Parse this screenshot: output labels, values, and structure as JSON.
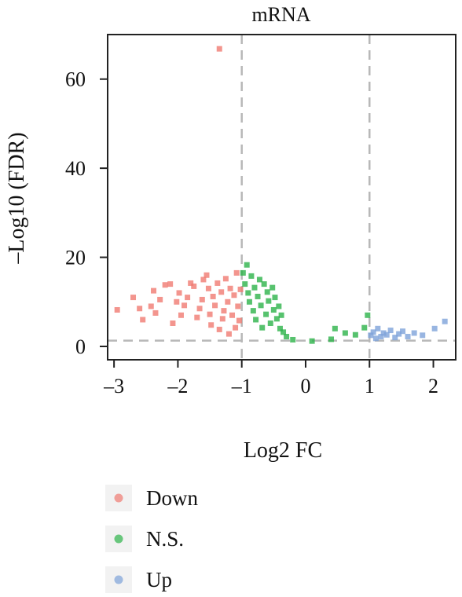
{
  "chart_data": {
    "type": "scatter",
    "title": "mRNA",
    "xlabel": "Log2 FC",
    "ylabel": "–Log10 (FDR)",
    "xlim": [
      -3.1,
      2.35
    ],
    "ylim": [
      -3,
      70
    ],
    "x_ticks": [
      -3,
      -2,
      -1,
      0,
      1,
      2
    ],
    "x_tick_labels": [
      "–3",
      "–2",
      "–1",
      "0",
      "1",
      "2"
    ],
    "y_ticks": [
      0,
      20,
      40,
      60
    ],
    "y_tick_labels": [
      "0",
      "20",
      "40",
      "60"
    ],
    "grid": false,
    "legend": "bottom-left",
    "thresholds": {
      "x": [
        -1,
        1
      ],
      "y": [
        1.3
      ]
    },
    "series": [
      {
        "name": "Down",
        "color": "#f07b72",
        "points": [
          [
            -1.35,
            66.8
          ],
          [
            -2.95,
            8.2
          ],
          [
            -2.7,
            11.0
          ],
          [
            -2.6,
            8.5
          ],
          [
            -2.55,
            6.0
          ],
          [
            -2.42,
            9.0
          ],
          [
            -2.38,
            12.5
          ],
          [
            -2.35,
            7.5
          ],
          [
            -2.28,
            10.5
          ],
          [
            -2.2,
            13.8
          ],
          [
            -2.12,
            14.0
          ],
          [
            -2.08,
            5.2
          ],
          [
            -2.02,
            10.0
          ],
          [
            -1.98,
            12.0
          ],
          [
            -1.95,
            7.0
          ],
          [
            -1.9,
            9.2
          ],
          [
            -1.85,
            11.0
          ],
          [
            -1.8,
            14.2
          ],
          [
            -1.75,
            13.5
          ],
          [
            -1.7,
            6.5
          ],
          [
            -1.66,
            8.5
          ],
          [
            -1.62,
            10.5
          ],
          [
            -1.6,
            15.0
          ],
          [
            -1.55,
            16.0
          ],
          [
            -1.52,
            13.0
          ],
          [
            -1.5,
            7.2
          ],
          [
            -1.48,
            4.8
          ],
          [
            -1.45,
            11.2
          ],
          [
            -1.42,
            9.2
          ],
          [
            -1.38,
            14.2
          ],
          [
            -1.35,
            3.8
          ],
          [
            -1.32,
            12.2
          ],
          [
            -1.3,
            6.2
          ],
          [
            -1.28,
            8.0
          ],
          [
            -1.25,
            15.2
          ],
          [
            -1.22,
            10.0
          ],
          [
            -1.2,
            2.8
          ],
          [
            -1.18,
            13.0
          ],
          [
            -1.15,
            7.0
          ],
          [
            -1.12,
            11.5
          ],
          [
            -1.1,
            4.2
          ],
          [
            -1.08,
            16.5
          ],
          [
            -1.06,
            9.0
          ],
          [
            -1.04,
            5.8
          ],
          [
            -1.02,
            12.8
          ]
        ]
      },
      {
        "name": "N.S.",
        "color": "#2db34a",
        "points": [
          [
            -0.92,
            18.3
          ],
          [
            -0.98,
            16.5
          ],
          [
            -0.95,
            14.0
          ],
          [
            -0.9,
            12.0
          ],
          [
            -0.88,
            10.0
          ],
          [
            -0.85,
            15.8
          ],
          [
            -0.82,
            8.0
          ],
          [
            -0.8,
            13.2
          ],
          [
            -0.78,
            6.0
          ],
          [
            -0.75,
            11.2
          ],
          [
            -0.72,
            15.0
          ],
          [
            -0.7,
            9.2
          ],
          [
            -0.68,
            4.2
          ],
          [
            -0.65,
            14.0
          ],
          [
            -0.62,
            7.2
          ],
          [
            -0.6,
            12.2
          ],
          [
            -0.58,
            10.2
          ],
          [
            -0.55,
            5.2
          ],
          [
            -0.52,
            13.2
          ],
          [
            -0.5,
            8.2
          ],
          [
            -0.48,
            11.0
          ],
          [
            -0.45,
            6.2
          ],
          [
            -0.42,
            9.0
          ],
          [
            -0.4,
            4.0
          ],
          [
            -0.38,
            7.0
          ],
          [
            -0.35,
            3.2
          ],
          [
            -0.3,
            2.2
          ],
          [
            -0.2,
            1.5
          ],
          [
            0.1,
            1.2
          ],
          [
            0.4,
            1.6
          ],
          [
            0.46,
            4.0
          ],
          [
            0.62,
            3.0
          ],
          [
            0.78,
            2.6
          ],
          [
            0.92,
            4.2
          ],
          [
            0.97,
            7.0
          ]
        ]
      },
      {
        "name": "Up",
        "color": "#7ea3d9",
        "points": [
          [
            1.02,
            2.5
          ],
          [
            1.06,
            3.2
          ],
          [
            1.1,
            1.8
          ],
          [
            1.13,
            4.0
          ],
          [
            1.18,
            2.2
          ],
          [
            1.22,
            3.0
          ],
          [
            1.27,
            2.6
          ],
          [
            1.33,
            3.6
          ],
          [
            1.4,
            2.0
          ],
          [
            1.46,
            2.8
          ],
          [
            1.52,
            3.4
          ],
          [
            1.6,
            2.2
          ],
          [
            1.7,
            3.0
          ],
          [
            1.83,
            2.5
          ],
          [
            2.02,
            4.0
          ],
          [
            2.18,
            5.6
          ]
        ]
      }
    ]
  }
}
